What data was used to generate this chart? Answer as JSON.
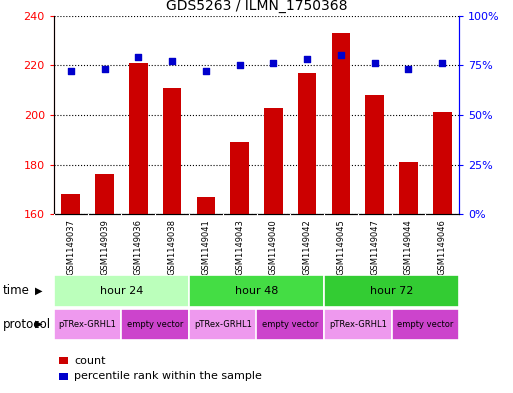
{
  "title": "GDS5263 / ILMN_1750368",
  "samples": [
    "GSM1149037",
    "GSM1149039",
    "GSM1149036",
    "GSM1149038",
    "GSM1149041",
    "GSM1149043",
    "GSM1149040",
    "GSM1149042",
    "GSM1149045",
    "GSM1149047",
    "GSM1149044",
    "GSM1149046"
  ],
  "bar_values": [
    168,
    176,
    221,
    211,
    167,
    189,
    203,
    217,
    233,
    208,
    181,
    201
  ],
  "percentile_values": [
    72,
    73,
    79,
    77,
    72,
    75,
    76,
    78,
    80,
    76,
    73,
    76
  ],
  "ylim_left": [
    160,
    240
  ],
  "ylim_right": [
    0,
    100
  ],
  "yticks_left": [
    160,
    180,
    200,
    220,
    240
  ],
  "yticks_right": [
    0,
    25,
    50,
    75,
    100
  ],
  "bar_color": "#cc0000",
  "dot_color": "#0000cc",
  "bar_width": 0.55,
  "time_groups": [
    {
      "label": "hour 24",
      "start": 0,
      "end": 3,
      "color": "#bbffbb"
    },
    {
      "label": "hour 48",
      "start": 4,
      "end": 7,
      "color": "#44dd44"
    },
    {
      "label": "hour 72",
      "start": 8,
      "end": 11,
      "color": "#33cc33"
    }
  ],
  "protocol_groups": [
    {
      "label": "pTRex-GRHL1",
      "start": 0,
      "end": 1,
      "color": "#ee99ee"
    },
    {
      "label": "empty vector",
      "start": 2,
      "end": 3,
      "color": "#cc44cc"
    },
    {
      "label": "pTRex-GRHL1",
      "start": 4,
      "end": 5,
      "color": "#ee99ee"
    },
    {
      "label": "empty vector",
      "start": 6,
      "end": 7,
      "color": "#cc44cc"
    },
    {
      "label": "pTRex-GRHL1",
      "start": 8,
      "end": 9,
      "color": "#ee99ee"
    },
    {
      "label": "empty vector",
      "start": 10,
      "end": 11,
      "color": "#cc44cc"
    }
  ],
  "time_label": "time",
  "protocol_label": "protocol",
  "legend_count_label": "count",
  "legend_percentile_label": "percentile rank within the sample",
  "background_color": "#ffffff",
  "plot_bg_color": "#ffffff"
}
